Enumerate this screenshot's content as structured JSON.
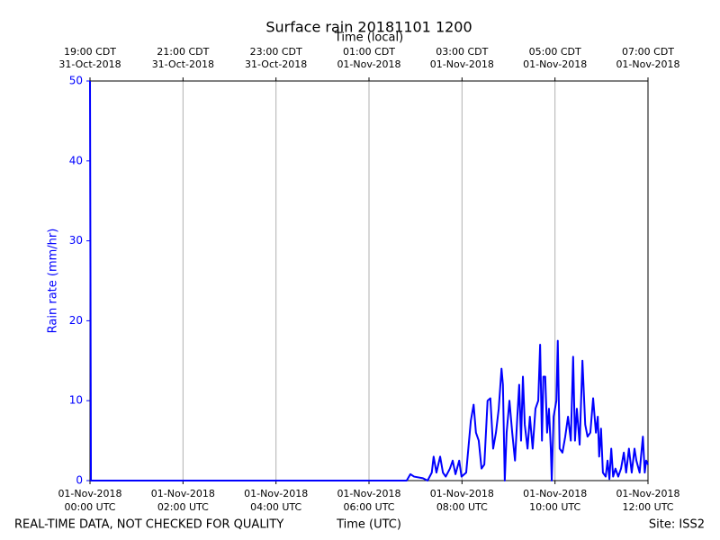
{
  "chart_data": {
    "type": "line",
    "title": "Surface rain 20181101 1200",
    "x2_label": "Time (local)",
    "y_label": "Rain rate (mm/hr)",
    "x_label": "Time (UTC)",
    "footer_left": "REAL-TIME DATA, NOT CHECKED FOR QUALITY",
    "footer_right": "Site: ISS2",
    "xlim": [
      0,
      12
    ],
    "xticks": [
      {
        "value": 0,
        "label": [
          "01-Nov-2018",
          "00:00 UTC"
        ]
      },
      {
        "value": 2,
        "label": [
          "01-Nov-2018",
          "02:00 UTC"
        ]
      },
      {
        "value": 4,
        "label": [
          "01-Nov-2018",
          "04:00 UTC"
        ]
      },
      {
        "value": 6,
        "label": [
          "01-Nov-2018",
          "06:00 UTC"
        ]
      },
      {
        "value": 8,
        "label": [
          "01-Nov-2018",
          "08:00 UTC"
        ]
      },
      {
        "value": 10,
        "label": [
          "01-Nov-2018",
          "10:00 UTC"
        ]
      },
      {
        "value": 12,
        "label": [
          "01-Nov-2018",
          "12:00 UTC"
        ]
      }
    ],
    "x2ticks": [
      {
        "value": 0,
        "label": [
          "19:00 CDT",
          "31-Oct-2018"
        ]
      },
      {
        "value": 2,
        "label": [
          "21:00 CDT",
          "31-Oct-2018"
        ]
      },
      {
        "value": 4,
        "label": [
          "23:00 CDT",
          "31-Oct-2018"
        ]
      },
      {
        "value": 6,
        "label": [
          "01:00 CDT",
          "01-Nov-2018"
        ]
      },
      {
        "value": 8,
        "label": [
          "03:00 CDT",
          "01-Nov-2018"
        ]
      },
      {
        "value": 10,
        "label": [
          "05:00 CDT",
          "01-Nov-2018"
        ]
      },
      {
        "value": 12,
        "label": [
          "07:00 CDT",
          "01-Nov-2018"
        ]
      }
    ],
    "ylim": [
      0,
      50
    ],
    "yticks": [
      0,
      10,
      20,
      30,
      40,
      50
    ],
    "grid": true,
    "axis_color": "#0000ff",
    "series": [
      {
        "name": "Rain rate",
        "color": "#0000ff",
        "x": [
          0,
          0.02,
          6.81,
          6.89,
          6.97,
          7.16,
          7.26,
          7.35,
          7.39,
          7.45,
          7.53,
          7.59,
          7.65,
          7.74,
          7.8,
          7.86,
          7.94,
          7.99,
          8.09,
          8.19,
          8.25,
          8.3,
          8.36,
          8.42,
          8.48,
          8.55,
          8.61,
          8.67,
          8.73,
          8.79,
          8.85,
          8.88,
          8.92,
          8.96,
          9.02,
          9.08,
          9.14,
          9.19,
          9.23,
          9.27,
          9.31,
          9.35,
          9.41,
          9.46,
          9.52,
          9.58,
          9.64,
          9.68,
          9.72,
          9.75,
          9.79,
          9.83,
          9.87,
          9.91,
          9.93,
          9.97,
          10.03,
          10.06,
          10.1,
          10.16,
          10.22,
          10.28,
          10.34,
          10.39,
          10.43,
          10.47,
          10.53,
          10.59,
          10.65,
          10.7,
          10.76,
          10.82,
          10.88,
          10.92,
          10.95,
          10.99,
          11.03,
          11.09,
          11.13,
          11.17,
          11.21,
          11.25,
          11.3,
          11.36,
          11.42,
          11.48,
          11.53,
          11.59,
          11.65,
          11.71,
          11.75,
          11.82,
          11.85,
          11.89,
          11.93,
          11.96,
          12.0
        ],
        "values": [
          50,
          0,
          0,
          0.8,
          0.5,
          0.3,
          0,
          1,
          3,
          1,
          3,
          1,
          0.5,
          1.5,
          2.5,
          0.8,
          2.5,
          0.5,
          1,
          7.5,
          9.5,
          6,
          5,
          1.5,
          2,
          10,
          10.3,
          4,
          6,
          9,
          14,
          12,
          0,
          6,
          10,
          6,
          2.5,
          8,
          12,
          5,
          13,
          7,
          4,
          8,
          4,
          9,
          10,
          17,
          5,
          13,
          13,
          6,
          9,
          4,
          0,
          8,
          10,
          17.5,
          4,
          3.5,
          5.5,
          8,
          5,
          15.5,
          5,
          9,
          4.5,
          15,
          7,
          5.5,
          6,
          10.3,
          6,
          8,
          3,
          6.5,
          1,
          0.5,
          2.5,
          0.2,
          4,
          0.5,
          1.5,
          0.5,
          1.5,
          3.5,
          1,
          4,
          1,
          4,
          2.5,
          1,
          3,
          5.5,
          1,
          2.5,
          2
        ]
      }
    ]
  }
}
